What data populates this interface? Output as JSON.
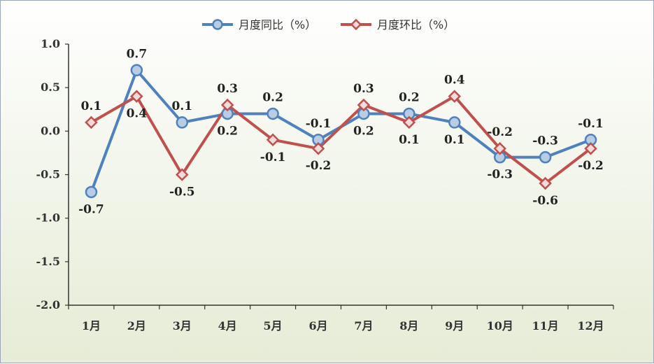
{
  "chart_data": {
    "type": "line",
    "categories": [
      "1月",
      "2月",
      "3月",
      "4月",
      "5月",
      "6月",
      "7月",
      "8月",
      "9月",
      "10月",
      "11月",
      "12月"
    ],
    "series": [
      {
        "name": "月度同比（%）",
        "color": "#4f81bd",
        "marker": "circle",
        "values": [
          -0.7,
          0.7,
          0.1,
          0.2,
          0.2,
          -0.1,
          0.2,
          0.2,
          0.1,
          -0.3,
          -0.3,
          -0.1
        ]
      },
      {
        "name": "月度环比（%）",
        "color": "#c0504d",
        "marker": "diamond",
        "values": [
          0.1,
          0.4,
          -0.5,
          0.3,
          -0.1,
          -0.2,
          0.3,
          0.1,
          0.4,
          -0.2,
          -0.6,
          -0.2
        ]
      }
    ],
    "ylim": [
      -2.0,
      1.0
    ],
    "yticks": [
      "1.0",
      "0.5",
      "0.0",
      "-0.5",
      "-1.0",
      "-1.5",
      "-2.0"
    ],
    "ytick_values": [
      1.0,
      0.5,
      0.0,
      -0.5,
      -1.0,
      -1.5,
      -2.0
    ],
    "legend": "top-center",
    "grid": false,
    "data_labels": {
      "series0": [
        "-0.7",
        "0.7",
        "0.1",
        "0.2",
        "0.2",
        "-0.1",
        "0.2",
        "0.2",
        "0.1",
        "-0.3",
        "-0.3",
        "-0.1"
      ],
      "series1": [
        "0.1",
        "0.4",
        "-0.5",
        "0.3",
        "-0.1",
        "-0.2",
        "0.3",
        "0.1",
        "0.4",
        "-0.2",
        "-0.6",
        "-0.2"
      ]
    }
  }
}
